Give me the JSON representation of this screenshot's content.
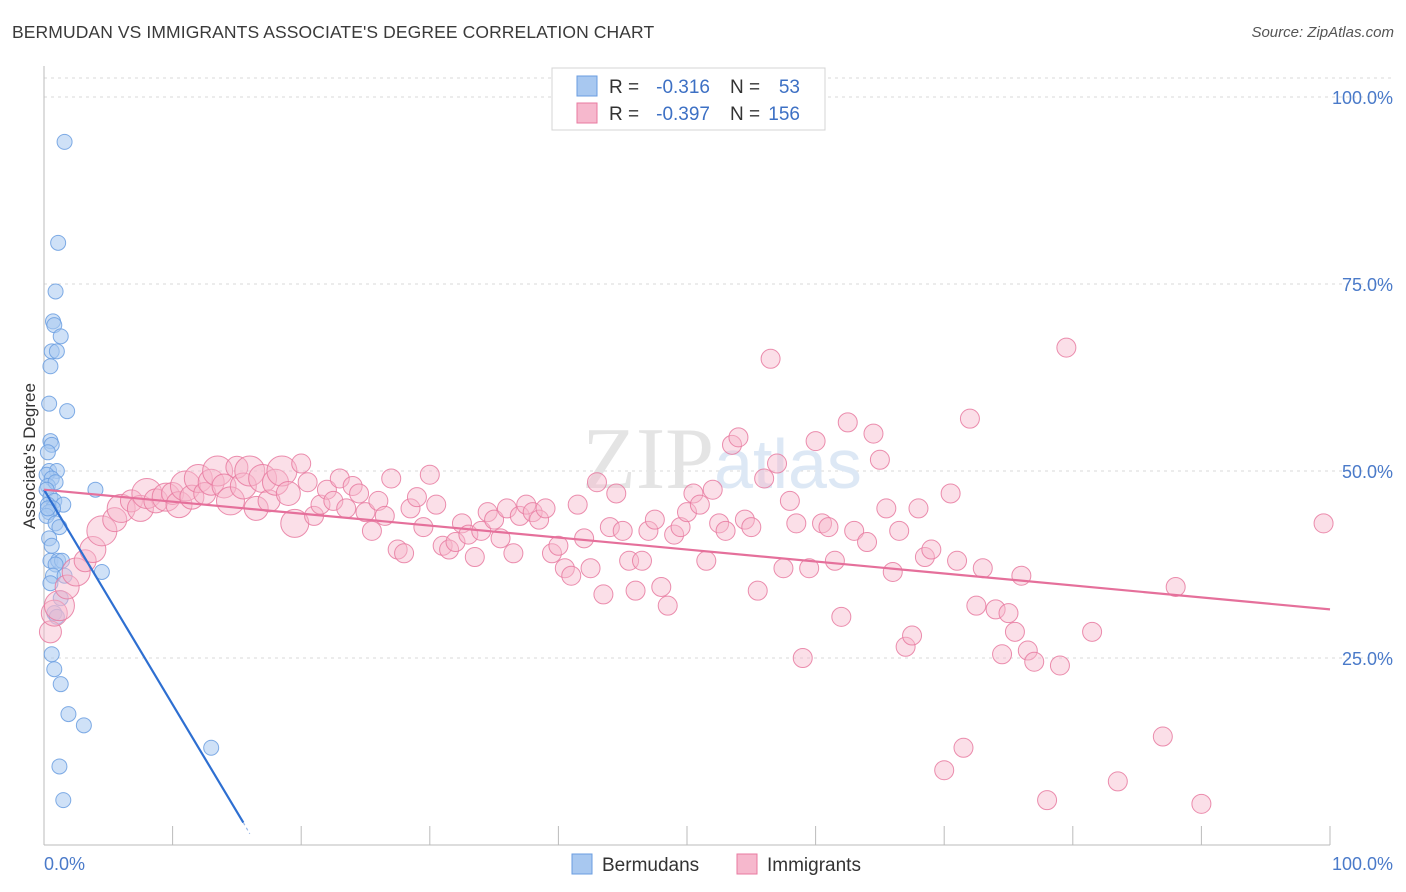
{
  "title": "BERMUDAN VS IMMIGRANTS ASSOCIATE'S DEGREE CORRELATION CHART",
  "source": "Source: ZipAtlas.com",
  "watermark": "ZIPatlas",
  "chart_data": {
    "type": "scatter",
    "xlabel": "",
    "ylabel": "Associate's Degree",
    "xlim": [
      0,
      100
    ],
    "ylim": [
      0,
      100
    ],
    "x_tick_labels": [
      "0.0%",
      "100.0%"
    ],
    "y_tick_labels": [
      "100.0%",
      "75.0%",
      "50.0%",
      "25.0%"
    ],
    "y_tick_values": [
      100,
      75,
      50,
      25
    ],
    "grid": true,
    "legend": {
      "position": "top-center",
      "rows": [
        {
          "r_label": "R =",
          "r_value": "-0.316",
          "n_label": "N =",
          "n_value": "53"
        },
        {
          "r_label": "R =",
          "r_value": "-0.397",
          "n_label": "N =",
          "n_value": "156"
        }
      ]
    },
    "series": [
      {
        "name": "Bermudans",
        "color": "#6a9de0",
        "fill": "#a8c8f0",
        "r": -0.316,
        "n": 53,
        "trend": {
          "x0": 0.0,
          "y0": 47.5,
          "x1": 15.5,
          "y1": 3.0,
          "x1_dash": 16.0,
          "y1_dash": 1.5
        },
        "points": [
          [
            1.6,
            94.0
          ],
          [
            1.1,
            80.5
          ],
          [
            0.9,
            74.0
          ],
          [
            0.7,
            70.0
          ],
          [
            0.8,
            69.5
          ],
          [
            1.3,
            68.0
          ],
          [
            0.6,
            66.0
          ],
          [
            1.0,
            66.0
          ],
          [
            0.5,
            64.0
          ],
          [
            0.4,
            59.0
          ],
          [
            1.8,
            58.0
          ],
          [
            0.5,
            54.0
          ],
          [
            0.6,
            53.5
          ],
          [
            0.3,
            52.5
          ],
          [
            0.4,
            50.0
          ],
          [
            1.0,
            50.0
          ],
          [
            0.2,
            49.5
          ],
          [
            0.6,
            49.0
          ],
          [
            0.3,
            48.0
          ],
          [
            0.9,
            48.5
          ],
          [
            0.2,
            47.5
          ],
          [
            4.0,
            47.5
          ],
          [
            0.5,
            46.5
          ],
          [
            0.8,
            46.0
          ],
          [
            0.3,
            45.5
          ],
          [
            1.5,
            45.5
          ],
          [
            0.7,
            45.0
          ],
          [
            0.4,
            44.5
          ],
          [
            0.2,
            44.0
          ],
          [
            0.9,
            43.0
          ],
          [
            1.2,
            42.5
          ],
          [
            0.4,
            41.0
          ],
          [
            0.6,
            40.0
          ],
          [
            0.5,
            38.0
          ],
          [
            1.1,
            38.0
          ],
          [
            1.4,
            38.0
          ],
          [
            0.9,
            37.5
          ],
          [
            0.7,
            36.0
          ],
          [
            1.6,
            36.0
          ],
          [
            4.5,
            36.5
          ],
          [
            0.5,
            35.0
          ],
          [
            1.3,
            33.0
          ],
          [
            0.8,
            31.0
          ],
          [
            1.0,
            30.5
          ],
          [
            0.6,
            25.5
          ],
          [
            0.8,
            23.5
          ],
          [
            1.3,
            21.5
          ],
          [
            1.9,
            17.5
          ],
          [
            3.1,
            16.0
          ],
          [
            13.0,
            13.0
          ],
          [
            1.2,
            10.5
          ],
          [
            1.5,
            6.0
          ],
          [
            0.3,
            45.0
          ]
        ]
      },
      {
        "name": "Immigrants",
        "color": "#e87aa0",
        "fill": "#f6b8cd",
        "r": -0.397,
        "n": 156,
        "trend": {
          "x0": 0.0,
          "y0": 47.5,
          "x1": 100.0,
          "y1": 31.5
        },
        "points": [
          [
            0.5,
            28.5
          ],
          [
            0.8,
            31.0
          ],
          [
            1.2,
            32.0
          ],
          [
            1.8,
            34.5
          ],
          [
            2.5,
            36.5
          ],
          [
            3.2,
            38.0
          ],
          [
            3.8,
            39.5
          ],
          [
            4.5,
            42.0
          ],
          [
            5.5,
            43.5
          ],
          [
            6.0,
            45.0
          ],
          [
            6.8,
            46.0
          ],
          [
            7.5,
            45.0
          ],
          [
            8.0,
            47.0
          ],
          [
            8.7,
            46.0
          ],
          [
            9.5,
            46.5
          ],
          [
            10.0,
            47.0
          ],
          [
            10.5,
            45.5
          ],
          [
            11.0,
            48.0
          ],
          [
            11.5,
            46.5
          ],
          [
            12.0,
            49.0
          ],
          [
            12.5,
            47.0
          ],
          [
            13.0,
            48.5
          ],
          [
            13.5,
            50.0
          ],
          [
            14.0,
            48.0
          ],
          [
            14.5,
            46.0
          ],
          [
            15.0,
            50.5
          ],
          [
            15.5,
            48.0
          ],
          [
            16.0,
            50.0
          ],
          [
            16.5,
            45.0
          ],
          [
            17.0,
            49.0
          ],
          [
            17.5,
            46.0
          ],
          [
            18.0,
            48.5
          ],
          [
            18.5,
            50.0
          ],
          [
            19.0,
            47.0
          ],
          [
            19.5,
            43.0
          ],
          [
            20.0,
            51.0
          ],
          [
            20.5,
            48.5
          ],
          [
            21.0,
            44.0
          ],
          [
            21.5,
            45.5
          ],
          [
            22.0,
            47.5
          ],
          [
            22.5,
            46.0
          ],
          [
            23.0,
            49.0
          ],
          [
            23.5,
            45.0
          ],
          [
            24.0,
            48.0
          ],
          [
            24.5,
            47.0
          ],
          [
            25.0,
            44.5
          ],
          [
            25.5,
            42.0
          ],
          [
            26.0,
            46.0
          ],
          [
            26.5,
            44.0
          ],
          [
            27.0,
            49.0
          ],
          [
            27.5,
            39.5
          ],
          [
            28.0,
            39.0
          ],
          [
            28.5,
            45.0
          ],
          [
            29.0,
            46.5
          ],
          [
            29.5,
            42.5
          ],
          [
            30.0,
            49.5
          ],
          [
            30.5,
            45.5
          ],
          [
            31.0,
            40.0
          ],
          [
            31.5,
            39.5
          ],
          [
            32.0,
            40.5
          ],
          [
            32.5,
            43.0
          ],
          [
            33.0,
            41.5
          ],
          [
            33.5,
            38.5
          ],
          [
            34.0,
            42.0
          ],
          [
            34.5,
            44.5
          ],
          [
            35.0,
            43.5
          ],
          [
            35.5,
            41.0
          ],
          [
            36.0,
            45.0
          ],
          [
            36.5,
            39.0
          ],
          [
            37.0,
            44.0
          ],
          [
            37.5,
            45.5
          ],
          [
            38.0,
            44.5
          ],
          [
            38.5,
            43.5
          ],
          [
            39.0,
            45.0
          ],
          [
            39.5,
            39.0
          ],
          [
            40.0,
            40.0
          ],
          [
            40.5,
            37.0
          ],
          [
            41.0,
            36.0
          ],
          [
            41.5,
            45.5
          ],
          [
            42.0,
            41.0
          ],
          [
            42.5,
            37.0
          ],
          [
            43.0,
            48.5
          ],
          [
            43.5,
            33.5
          ],
          [
            44.0,
            42.5
          ],
          [
            44.5,
            47.0
          ],
          [
            45.0,
            42.0
          ],
          [
            45.5,
            38.0
          ],
          [
            46.0,
            34.0
          ],
          [
            46.5,
            38.0
          ],
          [
            47.0,
            42.0
          ],
          [
            47.5,
            43.5
          ],
          [
            48.0,
            34.5
          ],
          [
            48.5,
            32.0
          ],
          [
            49.0,
            41.5
          ],
          [
            49.5,
            42.5
          ],
          [
            50.0,
            44.5
          ],
          [
            50.5,
            47.0
          ],
          [
            51.0,
            45.5
          ],
          [
            51.5,
            38.0
          ],
          [
            52.0,
            47.5
          ],
          [
            52.5,
            43.0
          ],
          [
            53.0,
            42.0
          ],
          [
            53.5,
            53.5
          ],
          [
            54.0,
            54.5
          ],
          [
            54.5,
            43.5
          ],
          [
            55.0,
            42.5
          ],
          [
            55.5,
            34.0
          ],
          [
            56.0,
            49.0
          ],
          [
            56.5,
            65.0
          ],
          [
            57.0,
            51.0
          ],
          [
            57.5,
            37.0
          ],
          [
            58.0,
            46.0
          ],
          [
            58.5,
            43.0
          ],
          [
            59.0,
            25.0
          ],
          [
            59.5,
            37.0
          ],
          [
            60.0,
            54.0
          ],
          [
            60.5,
            43.0
          ],
          [
            61.0,
            42.5
          ],
          [
            61.5,
            38.0
          ],
          [
            62.0,
            30.5
          ],
          [
            62.5,
            56.5
          ],
          [
            63.0,
            42.0
          ],
          [
            64.0,
            40.5
          ],
          [
            64.5,
            55.0
          ],
          [
            65.0,
            51.5
          ],
          [
            65.5,
            45.0
          ],
          [
            66.0,
            36.5
          ],
          [
            66.5,
            42.0
          ],
          [
            67.0,
            26.5
          ],
          [
            67.5,
            28.0
          ],
          [
            68.0,
            45.0
          ],
          [
            68.5,
            38.5
          ],
          [
            69.0,
            39.5
          ],
          [
            70.0,
            10.0
          ],
          [
            70.5,
            47.0
          ],
          [
            71.0,
            38.0
          ],
          [
            71.5,
            13.0
          ],
          [
            72.0,
            57.0
          ],
          [
            72.5,
            32.0
          ],
          [
            73.0,
            37.0
          ],
          [
            74.0,
            31.5
          ],
          [
            74.5,
            25.5
          ],
          [
            75.0,
            31.0
          ],
          [
            75.5,
            28.5
          ],
          [
            76.0,
            36.0
          ],
          [
            76.5,
            26.0
          ],
          [
            77.0,
            24.5
          ],
          [
            78.0,
            6.0
          ],
          [
            79.0,
            24.0
          ],
          [
            79.5,
            66.5
          ],
          [
            81.5,
            28.5
          ],
          [
            83.5,
            8.5
          ],
          [
            87.0,
            14.5
          ],
          [
            88.0,
            34.5
          ],
          [
            90.0,
            5.5
          ],
          [
            99.5,
            43.0
          ]
        ]
      }
    ]
  }
}
